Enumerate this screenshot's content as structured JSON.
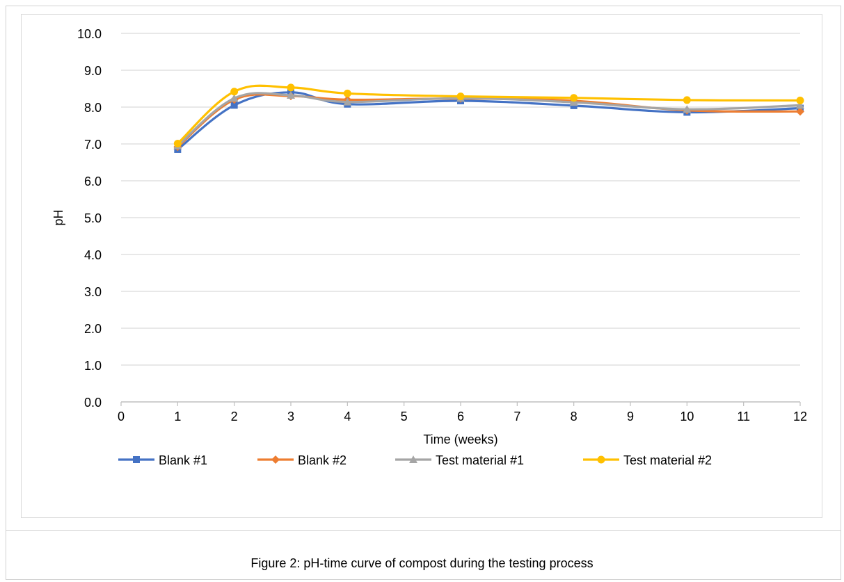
{
  "caption": "Figure 2: pH-time curve of compost during the testing process",
  "chart_data": {
    "type": "line",
    "xlabel": "Time (weeks)",
    "ylabel": "pH",
    "xlim": [
      0,
      12
    ],
    "ylim": [
      0,
      10
    ],
    "x_ticks": [
      "0",
      "1",
      "2",
      "3",
      "4",
      "5",
      "6",
      "7",
      "8",
      "9",
      "10",
      "11",
      "12"
    ],
    "y_ticks": [
      "0.0",
      "1.0",
      "2.0",
      "3.0",
      "4.0",
      "5.0",
      "6.0",
      "7.0",
      "8.0",
      "9.0",
      "10.0"
    ],
    "grid": true,
    "legend_position": "bottom",
    "series": [
      {
        "name": "Blank #1",
        "color": "#4472C4",
        "marker": "square",
        "x": [
          1,
          2,
          3,
          4,
          6,
          8,
          10,
          12
        ],
        "y": [
          6.85,
          8.05,
          8.4,
          8.08,
          8.17,
          8.04,
          7.86,
          7.97
        ]
      },
      {
        "name": "Blank #2",
        "color": "#ED7D31",
        "marker": "diamond",
        "x": [
          1,
          2,
          3,
          4,
          6,
          8,
          10,
          12
        ],
        "y": [
          6.92,
          8.2,
          8.3,
          8.2,
          8.23,
          8.17,
          7.91,
          7.88
        ]
      },
      {
        "name": "Test material #1",
        "color": "#A5A5A5",
        "marker": "triangle",
        "x": [
          1,
          2,
          3,
          4,
          6,
          8,
          10,
          12
        ],
        "y": [
          6.95,
          8.24,
          8.32,
          8.14,
          8.24,
          8.13,
          7.94,
          8.05
        ]
      },
      {
        "name": "Test material #2",
        "color": "#FFC000",
        "marker": "circle",
        "x": [
          1,
          2,
          3,
          4,
          6,
          8,
          10,
          12
        ],
        "y": [
          7.01,
          8.42,
          8.53,
          8.37,
          8.29,
          8.25,
          8.19,
          8.18
        ]
      }
    ]
  }
}
